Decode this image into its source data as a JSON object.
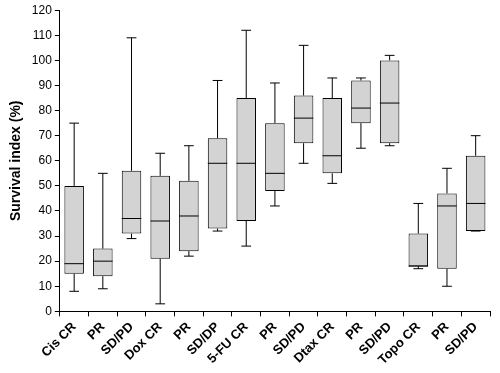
{
  "chart_data": {
    "type": "box",
    "y_label": "Survival index (%)",
    "categories": [
      "Cis CR",
      "PR",
      "SD/PD",
      "Dox CR",
      "PR",
      "SD/DP",
      "5-FU CR",
      "PR",
      "SD/PD",
      "Dtax CR",
      "PR",
      "SD/PD",
      "Topo CR",
      "PR",
      "SD/PD"
    ],
    "values": [
      {
        "min": 8,
        "q1": 15,
        "median": 19,
        "q3": 50,
        "max": 75
      },
      {
        "min": 9,
        "q1": 14,
        "median": 20,
        "q3": 25,
        "max": 55
      },
      {
        "min": 29,
        "q1": 31,
        "median": 37,
        "q3": 56,
        "max": 109
      },
      {
        "min": 3,
        "q1": 21,
        "median": 36,
        "q3": 54,
        "max": 63
      },
      {
        "min": 22,
        "q1": 24,
        "median": 38,
        "q3": 52,
        "max": 66
      },
      {
        "min": 32,
        "q1": 33,
        "median": 59,
        "q3": 69,
        "max": 92
      },
      {
        "min": 26,
        "q1": 36,
        "median": 59,
        "q3": 85,
        "max": 112
      },
      {
        "min": 42,
        "q1": 48,
        "median": 55,
        "q3": 75,
        "max": 91
      },
      {
        "min": 59,
        "q1": 67,
        "median": 77,
        "q3": 86,
        "max": 106
      },
      {
        "min": 51,
        "q1": 55,
        "median": 62,
        "q3": 85,
        "max": 93
      },
      {
        "min": 65,
        "q1": 75,
        "median": 81,
        "q3": 92,
        "max": 93
      },
      {
        "min": 66,
        "q1": 67,
        "median": 83,
        "q3": 100,
        "max": 102
      },
      {
        "min": 17,
        "q1": 18,
        "median": 18,
        "q3": 31,
        "max": 43
      },
      {
        "min": 10,
        "q1": 17,
        "median": 42,
        "q3": 47,
        "max": 57
      },
      {
        "min": 32,
        "q1": 32,
        "median": 43,
        "q3": 62,
        "max": 70
      }
    ],
    "color": "#d3d3d3",
    "ylim": [
      0,
      120
    ],
    "yticks": [
      0,
      10,
      20,
      30,
      40,
      50,
      60,
      70,
      80,
      90,
      100,
      110,
      120
    ],
    "grid": false
  }
}
